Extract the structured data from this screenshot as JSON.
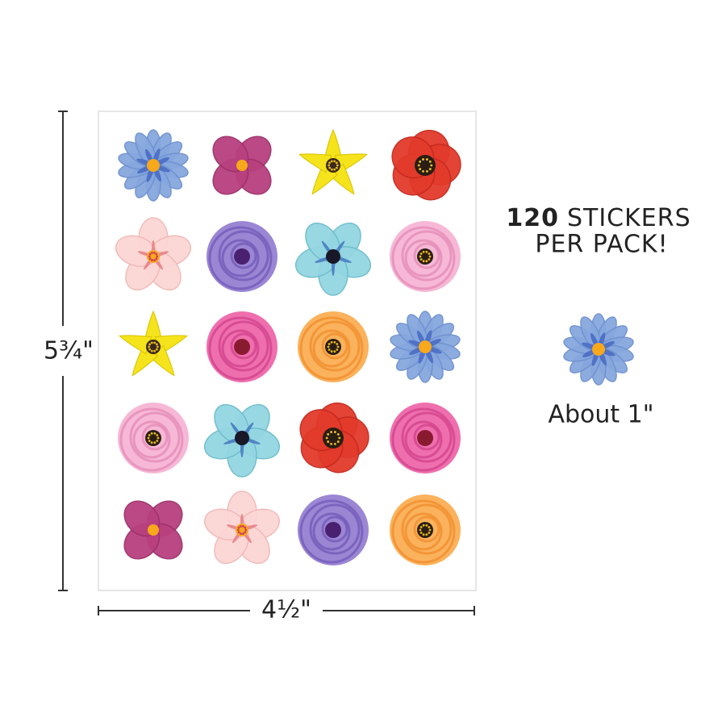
{
  "dimensions": {
    "height": "5¾\"",
    "width": "4½\""
  },
  "headline": {
    "count": "120",
    "unit": "STICKERS",
    "line2": "PER PACK!"
  },
  "sample": {
    "size": "About 1\""
  }
}
